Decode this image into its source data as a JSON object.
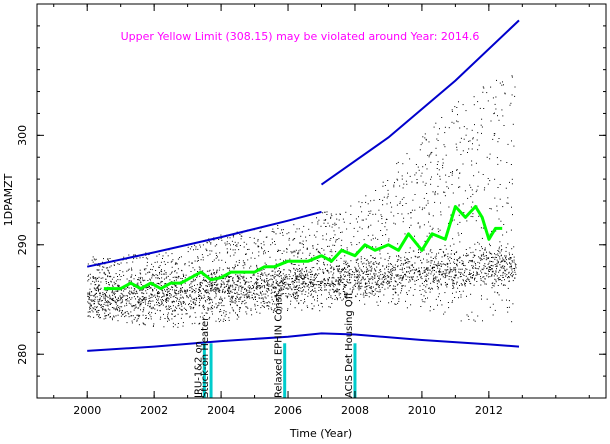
{
  "chart_data": {
    "type": "scatter",
    "title": "",
    "xlabel": "Time (Year)",
    "ylabel": "1DPAMZT",
    "xlim": [
      1998.5,
      2015.5
    ],
    "ylim": [
      276,
      312
    ],
    "xticks": [
      2000,
      2002,
      2004,
      2006,
      2008,
      2010,
      2012
    ],
    "yticks": [
      280,
      290,
      300
    ],
    "xtick_labels": [
      "2000",
      "2002",
      "2004",
      "2006",
      "2008",
      "2010",
      "2012"
    ],
    "ytick_labels": [
      "280",
      "290",
      "300"
    ],
    "grid": false,
    "note": "Upper Yellow  Limit (308.15) may be violated around Year: 2014.6",
    "colors": {
      "note": "#ff00ff",
      "points": "#000000",
      "trend": "#00ff00",
      "limits": "#0000cc",
      "events": "#00cccc"
    },
    "series": [
      {
        "kind": "scatter-band",
        "color": "#000000",
        "x": [
          2000.0,
          2001.0,
          2002.0,
          2003.0,
          2004.0,
          2005.0,
          2006.0,
          2007.0,
          2008.0,
          2009.0,
          2010.0,
          2011.0,
          2012.0,
          2012.8
        ],
        "y_low": [
          283.5,
          283.0,
          282.5,
          282.5,
          283.0,
          283.5,
          284.0,
          284.0,
          284.5,
          284.0,
          284.0,
          283.0,
          283.0,
          283.0
        ],
        "y_high": [
          289.0,
          289.0,
          289.5,
          290.0,
          291.0,
          291.5,
          292.0,
          293.0,
          294.0,
          297.0,
          300.0,
          303.0,
          305.0,
          306.0
        ]
      },
      {
        "kind": "trend",
        "color": "#00ff00",
        "x": [
          2000.5,
          2001.0,
          2001.3,
          2001.6,
          2001.9,
          2002.2,
          2002.5,
          2002.8,
          2003.1,
          2003.4,
          2003.7,
          2004.0,
          2004.3,
          2004.7,
          2005.0,
          2005.3,
          2005.6,
          2006.0,
          2006.3,
          2006.6,
          2007.0,
          2007.3,
          2007.6,
          2008.0,
          2008.3,
          2008.6,
          2009.0,
          2009.3,
          2009.6,
          2010.0,
          2010.3,
          2010.7,
          2011.0,
          2011.3,
          2011.6,
          2011.8,
          2012.0,
          2012.2,
          2012.4
        ],
        "y": [
          286.0,
          286.0,
          286.5,
          286.0,
          286.5,
          286.0,
          286.5,
          286.5,
          287.0,
          287.5,
          286.8,
          287.0,
          287.5,
          287.5,
          287.5,
          288.0,
          288.0,
          288.5,
          288.5,
          288.5,
          289.0,
          288.5,
          289.5,
          289.0,
          290.0,
          289.5,
          290.0,
          289.5,
          291.0,
          289.5,
          291.0,
          290.5,
          293.5,
          292.5,
          293.5,
          292.5,
          290.5,
          291.5,
          291.5
        ]
      },
      {
        "kind": "limit-line",
        "color": "#0000cc",
        "x": [
          2000.0,
          2002.0,
          2004.0,
          2006.0,
          2007.0
        ],
        "y": [
          288.0,
          289.3,
          290.7,
          292.2,
          293.0
        ]
      },
      {
        "kind": "limit-line",
        "color": "#0000cc",
        "x": [
          2007.0,
          2009.0,
          2011.0,
          2012.9
        ],
        "y": [
          295.5,
          299.8,
          305.0,
          310.5
        ]
      },
      {
        "kind": "limit-line",
        "color": "#0000cc",
        "x": [
          2000.0,
          2002.0,
          2004.0,
          2006.0,
          2007.0,
          2008.0,
          2010.0,
          2012.0,
          2012.9
        ],
        "y": [
          280.3,
          280.7,
          281.2,
          281.6,
          281.9,
          281.8,
          281.3,
          280.9,
          280.7
        ]
      }
    ],
    "annotations": [
      {
        "x": 2003.5,
        "label": "IRU-1&2 on"
      },
      {
        "x": 2003.7,
        "label": "Stuck-on Heater"
      },
      {
        "x": 2005.9,
        "label": "Relaxed EPHIN Const"
      },
      {
        "x": 2008.0,
        "label": "ACIS Det Housing Off"
      }
    ]
  }
}
